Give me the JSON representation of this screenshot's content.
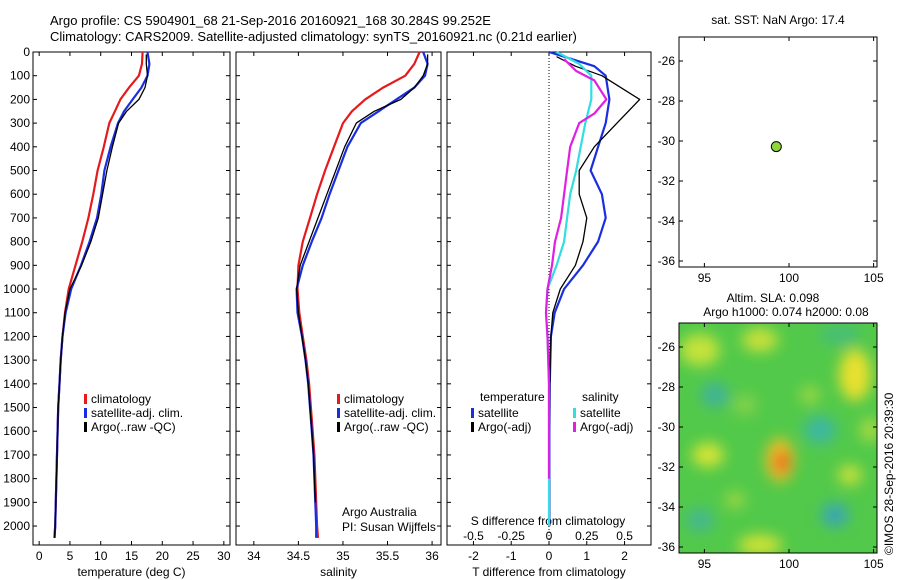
{
  "header": {
    "line1": "Argo profile: CS 5904901_68 21-Sep-2016 20160921_168 30.284S 99.252E",
    "line2": "Climatology: CARS2009. Satellite-adjusted climatology: synTS_20160921.nc (0.21d earlier)"
  },
  "colors": {
    "climatology": "#e41a1c",
    "satellite": "#1a2ee0",
    "argo": "#000000",
    "sal_satellite": "#33dde0",
    "sal_argo": "#e020e0",
    "float_marker": "#8ed639"
  },
  "chart_data": [
    {
      "id": "temperature",
      "type": "line",
      "xlabel": "temperature (deg C)",
      "ylabel": "",
      "xlim": [
        -1,
        31
      ],
      "ylim": [
        2080,
        0
      ],
      "xticks": [
        0,
        5,
        10,
        15,
        20,
        25,
        30
      ],
      "yticks": [
        0,
        100,
        200,
        300,
        400,
        500,
        600,
        700,
        800,
        900,
        1000,
        1100,
        1200,
        1300,
        1400,
        1500,
        1600,
        1700,
        1800,
        1900,
        2000
      ],
      "legend": [
        "climatology",
        "satellite-adj. clim.",
        "Argo(..raw -QC)"
      ],
      "series": [
        {
          "name": "climatology",
          "points": [
            [
              16.8,
              0
            ],
            [
              16.7,
              50
            ],
            [
              16.2,
              100
            ],
            [
              14.6,
              150
            ],
            [
              13.2,
              200
            ],
            [
              12.3,
              250
            ],
            [
              11.4,
              300
            ],
            [
              10.5,
              400
            ],
            [
              9.5,
              500
            ],
            [
              8.8,
              600
            ],
            [
              8.0,
              700
            ],
            [
              7.0,
              800
            ],
            [
              5.9,
              900
            ],
            [
              4.8,
              1000
            ],
            [
              4.2,
              1100
            ],
            [
              3.8,
              1200
            ],
            [
              3.5,
              1300
            ],
            [
              3.3,
              1400
            ],
            [
              3.1,
              1500
            ],
            [
              3.0,
              1600
            ],
            [
              2.9,
              1700
            ],
            [
              2.8,
              1800
            ],
            [
              2.7,
              1900
            ],
            [
              2.6,
              2000
            ],
            [
              2.5,
              2050
            ]
          ]
        },
        {
          "name": "satellite-adj. clim.",
          "points": [
            [
              17.6,
              0
            ],
            [
              17.9,
              50
            ],
            [
              17.6,
              100
            ],
            [
              16.6,
              150
            ],
            [
              15.2,
              200
            ],
            [
              13.8,
              250
            ],
            [
              12.8,
              300
            ],
            [
              11.6,
              400
            ],
            [
              10.6,
              500
            ],
            [
              10.1,
              600
            ],
            [
              9.4,
              700
            ],
            [
              8.2,
              800
            ],
            [
              6.8,
              900
            ],
            [
              5.2,
              1000
            ],
            [
              4.3,
              1100
            ],
            [
              3.8,
              1200
            ],
            [
              3.5,
              1300
            ],
            [
              3.3,
              1400
            ],
            [
              3.1,
              1500
            ],
            [
              3.0,
              1600
            ],
            [
              2.9,
              1700
            ],
            [
              2.8,
              1800
            ],
            [
              2.7,
              1900
            ],
            [
              2.6,
              2000
            ],
            [
              2.5,
              2050
            ]
          ]
        },
        {
          "name": "Argo(..raw -QC)",
          "points": [
            [
              17.4,
              10
            ],
            [
              17.4,
              50
            ],
            [
              17.6,
              100
            ],
            [
              17.2,
              150
            ],
            [
              16.2,
              200
            ],
            [
              14.2,
              250
            ],
            [
              12.9,
              300
            ],
            [
              11.9,
              400
            ],
            [
              11.0,
              500
            ],
            [
              10.3,
              600
            ],
            [
              9.6,
              700
            ],
            [
              8.4,
              800
            ],
            [
              6.9,
              900
            ],
            [
              5.0,
              1000
            ],
            [
              4.2,
              1100
            ],
            [
              3.8,
              1200
            ],
            [
              3.5,
              1300
            ],
            [
              3.3,
              1400
            ],
            [
              3.1,
              1500
            ],
            [
              3.0,
              1600
            ],
            [
              2.9,
              1700
            ],
            [
              2.8,
              1800
            ],
            [
              2.7,
              1900
            ],
            [
              2.6,
              2000
            ],
            [
              2.5,
              2050
            ]
          ]
        }
      ]
    },
    {
      "id": "salinity",
      "type": "line",
      "xlabel": "salinity",
      "ylabel": "",
      "xlim": [
        33.8,
        36.1
      ],
      "ylim": [
        2080,
        0
      ],
      "xticks": [
        34,
        34.5,
        35,
        35.5,
        36
      ],
      "xticklabels": [
        "34",
        "34.5",
        "35",
        "35.5",
        "36"
      ],
      "legend": [
        "climatology",
        "satellite-adj. clim.",
        "Argo(..raw -QC)"
      ],
      "annotation": [
        "Argo Australia",
        "PI: Susan Wijffels"
      ],
      "series": [
        {
          "name": "climatology",
          "points": [
            [
              35.86,
              0
            ],
            [
              35.8,
              50
            ],
            [
              35.7,
              100
            ],
            [
              35.45,
              150
            ],
            [
              35.25,
              200
            ],
            [
              35.1,
              250
            ],
            [
              35.0,
              300
            ],
            [
              34.9,
              400
            ],
            [
              34.8,
              500
            ],
            [
              34.71,
              600
            ],
            [
              34.63,
              700
            ],
            [
              34.55,
              800
            ],
            [
              34.5,
              900
            ],
            [
              34.49,
              1000
            ],
            [
              34.51,
              1100
            ],
            [
              34.55,
              1200
            ],
            [
              34.59,
              1300
            ],
            [
              34.62,
              1400
            ],
            [
              34.64,
              1500
            ],
            [
              34.66,
              1600
            ],
            [
              34.68,
              1700
            ],
            [
              34.69,
              1800
            ],
            [
              34.7,
              1900
            ],
            [
              34.71,
              2000
            ],
            [
              34.72,
              2050
            ]
          ]
        },
        {
          "name": "satellite-adj. clim.",
          "points": [
            [
              35.9,
              0
            ],
            [
              35.95,
              50
            ],
            [
              35.92,
              100
            ],
            [
              35.8,
              150
            ],
            [
              35.6,
              200
            ],
            [
              35.4,
              250
            ],
            [
              35.2,
              300
            ],
            [
              35.05,
              400
            ],
            [
              34.95,
              500
            ],
            [
              34.85,
              600
            ],
            [
              34.76,
              700
            ],
            [
              34.65,
              800
            ],
            [
              34.55,
              900
            ],
            [
              34.48,
              1000
            ],
            [
              34.49,
              1100
            ],
            [
              34.54,
              1200
            ],
            [
              34.58,
              1300
            ],
            [
              34.61,
              1400
            ],
            [
              34.63,
              1500
            ],
            [
              34.65,
              1600
            ],
            [
              34.67,
              1700
            ],
            [
              34.68,
              1800
            ],
            [
              34.69,
              1900
            ],
            [
              34.7,
              2000
            ],
            [
              34.7,
              2050
            ]
          ]
        },
        {
          "name": "Argo(..raw -QC)",
          "points": [
            [
              35.95,
              10
            ],
            [
              35.95,
              50
            ],
            [
              35.9,
              100
            ],
            [
              35.8,
              150
            ],
            [
              35.65,
              200
            ],
            [
              35.35,
              250
            ],
            [
              35.15,
              300
            ],
            [
              35.02,
              400
            ],
            [
              34.92,
              500
            ],
            [
              34.82,
              600
            ],
            [
              34.72,
              700
            ],
            [
              34.62,
              800
            ],
            [
              34.52,
              900
            ],
            [
              34.48,
              1000
            ],
            [
              34.5,
              1100
            ],
            [
              34.54,
              1200
            ],
            [
              34.58,
              1300
            ],
            [
              34.61,
              1400
            ],
            [
              34.63,
              1500
            ],
            [
              34.65,
              1600
            ],
            [
              34.67,
              1700
            ],
            [
              34.68,
              1800
            ],
            [
              34.69,
              1900
            ]
          ]
        }
      ]
    },
    {
      "id": "differences",
      "type": "line",
      "xlabel": "T difference from climatology",
      "xlabel_top": "S difference from climatology",
      "ylabel": "",
      "xlim": [
        -2.7,
        2.7
      ],
      "ylim": [
        2080,
        0
      ],
      "xticks": [
        -2,
        -1,
        0,
        1,
        2
      ],
      "xticklabels": [
        "-2",
        "-1",
        "0",
        "1",
        "2"
      ],
      "xticks_top": [
        -0.5,
        -0.25,
        0,
        0.25,
        0.5
      ],
      "xticklabels_top": [
        "-0.5",
        "-0.25",
        "0",
        "0.25",
        "0.5"
      ],
      "legend_titles": [
        "temperature",
        "salinity"
      ],
      "legend": [
        "satellite",
        "Argo(-adj)",
        "satellite",
        "Argo(-adj)"
      ],
      "series": [
        {
          "name": "satellite",
          "group": "temperature",
          "points": [
            [
              0,
              0
            ],
            [
              0.6,
              30
            ],
            [
              1.2,
              60
            ],
            [
              1.5,
              100
            ],
            [
              1.6,
              200
            ],
            [
              1.5,
              300
            ],
            [
              1.3,
              400
            ],
            [
              1.1,
              500
            ],
            [
              1.4,
              600
            ],
            [
              1.5,
              700
            ],
            [
              1.3,
              800
            ],
            [
              0.9,
              900
            ],
            [
              0.4,
              1000
            ],
            [
              0.15,
              1100
            ],
            [
              0.05,
              1200
            ],
            [
              0.02,
              1400
            ],
            [
              0.01,
              1600
            ],
            [
              0.01,
              1800
            ],
            [
              0.01,
              2000
            ]
          ]
        },
        {
          "name": "Argo(-adj)",
          "group": "temperature",
          "points": [
            [
              0.2,
              20
            ],
            [
              0.7,
              60
            ],
            [
              1.4,
              100
            ],
            [
              1.9,
              150
            ],
            [
              2.4,
              200
            ],
            [
              1.8,
              300
            ],
            [
              1.2,
              400
            ],
            [
              0.8,
              500
            ],
            [
              0.8,
              600
            ],
            [
              1.0,
              700
            ],
            [
              0.9,
              800
            ],
            [
              0.7,
              900
            ],
            [
              0.3,
              1000
            ],
            [
              0.1,
              1100
            ],
            [
              0.05,
              1200
            ],
            [
              0.02,
              1400
            ],
            [
              0.01,
              1600
            ],
            [
              0.01,
              1800
            ],
            [
              0.01,
              2000
            ]
          ]
        },
        {
          "name": "satellite",
          "group": "salinity",
          "points": [
            [
              0.05,
              0
            ],
            [
              0.2,
              50
            ],
            [
              0.28,
              100
            ],
            [
              0.28,
              200
            ],
            [
              0.24,
              300
            ],
            [
              0.21,
              400
            ],
            [
              0.18,
              500
            ],
            [
              0.14,
              600
            ],
            [
              0.12,
              700
            ],
            [
              0.1,
              800
            ],
            [
              0.05,
              900
            ],
            [
              -0.01,
              1000
            ],
            [
              -0.02,
              1100
            ],
            [
              -0.01,
              1200
            ],
            [
              0,
              1400
            ],
            [
              0,
              1600
            ],
            [
              0,
              1800
            ],
            [
              0,
              2000
            ]
          ]
        },
        {
          "name": "Argo(-adj)",
          "group": "salinity",
          "points": [
            [
              0.1,
              30
            ],
            [
              0.18,
              80
            ],
            [
              0.3,
              120
            ],
            [
              0.38,
              200
            ],
            [
              0.3,
              260
            ],
            [
              0.2,
              300
            ],
            [
              0.14,
              400
            ],
            [
              0.12,
              500
            ],
            [
              0.1,
              600
            ],
            [
              0.08,
              700
            ],
            [
              0.04,
              800
            ],
            [
              0.02,
              900
            ],
            [
              -0.01,
              1000
            ],
            [
              -0.02,
              1100
            ],
            [
              -0.01,
              1200
            ],
            [
              0,
              1400
            ],
            [
              0,
              1600
            ],
            [
              0,
              1800
            ]
          ]
        }
      ]
    },
    {
      "id": "location",
      "type": "scatter",
      "title": "sat. SST: NaN Argo: 17.4",
      "xlim": [
        93.5,
        105.2
      ],
      "ylim": [
        -36.3,
        -24.8
      ],
      "xticks": [
        95,
        100,
        105
      ],
      "yticks": [
        -26,
        -28,
        -30,
        -32,
        -34,
        -36
      ],
      "points": [
        [
          99.25,
          -30.28
        ]
      ]
    },
    {
      "id": "sla",
      "type": "heatmap",
      "title_lines": [
        "Altim. SLA: 0.098",
        "Argo h1000: 0.074 h2000: 0.08"
      ],
      "xlim": [
        93.5,
        105.2
      ],
      "ylim": [
        -36.3,
        -24.8
      ],
      "xticks": [
        95,
        100,
        105
      ],
      "yticks": [
        -26,
        -28,
        -30,
        -32,
        -34,
        -36
      ]
    }
  ],
  "side_label": "©IMOS 28-Sep-2016 20:39:30"
}
